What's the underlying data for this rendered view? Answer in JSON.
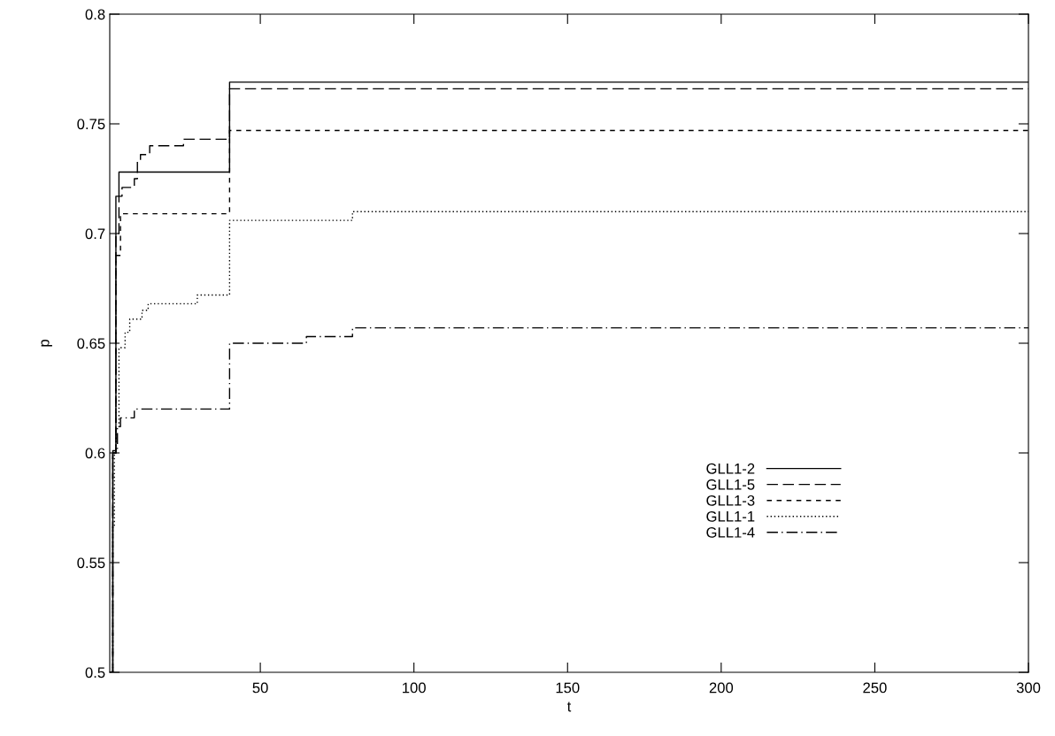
{
  "chart_data": {
    "type": "step",
    "xlabel": "t",
    "ylabel": "p",
    "xlim": [
      1,
      300
    ],
    "ylim": [
      0.5,
      0.8
    ],
    "xticks": [
      50,
      100,
      150,
      200,
      250,
      300
    ],
    "yticks": [
      0.5,
      0.55,
      0.6,
      0.65,
      0.7,
      0.75,
      0.8
    ],
    "grid": false,
    "legend": "bottom right",
    "series": [
      {
        "name": "GLL1-2",
        "color": "#000000",
        "line_style": "solid",
        "x": [
          1,
          2,
          3,
          4,
          40,
          300
        ],
        "values": [
          0.5,
          0.6,
          0.717,
          0.728,
          0.769,
          0.769
        ]
      },
      {
        "name": "GLL1-5",
        "color": "#000000",
        "line_style": "dashed",
        "x": [
          1,
          2,
          3,
          4,
          5,
          9,
          10,
          11,
          14,
          25,
          40,
          300
        ],
        "values": [
          0.5,
          0.6,
          0.7,
          0.717,
          0.721,
          0.725,
          0.733,
          0.736,
          0.74,
          0.743,
          0.766,
          0.766
        ]
      },
      {
        "name": "GLL1-3",
        "color": "#000000",
        "line_style": "short dashed",
        "x": [
          1,
          2,
          3,
          4.5,
          40,
          300
        ],
        "values": [
          0.5,
          0.6,
          0.69,
          0.709,
          0.747,
          0.747
        ]
      },
      {
        "name": "GLL1-1",
        "color": "#000000",
        "line_style": "dotted",
        "x": [
          1,
          2,
          2.5,
          3,
          4,
          6,
          7.5,
          11.5,
          13.5,
          29.5,
          40,
          80,
          300
        ],
        "values": [
          0.5,
          0.567,
          0.6,
          0.612,
          0.648,
          0.655,
          0.661,
          0.665,
          0.668,
          0.672,
          0.706,
          0.71,
          0.71
        ]
      },
      {
        "name": "GLL1-4",
        "color": "#000000",
        "line_style": "dashdot",
        "x": [
          1,
          2,
          3.5,
          4.5,
          9,
          40,
          65,
          80,
          300
        ],
        "values": [
          0.5,
          0.601,
          0.612,
          0.616,
          0.62,
          0.65,
          0.653,
          0.657,
          0.657
        ]
      }
    ]
  }
}
